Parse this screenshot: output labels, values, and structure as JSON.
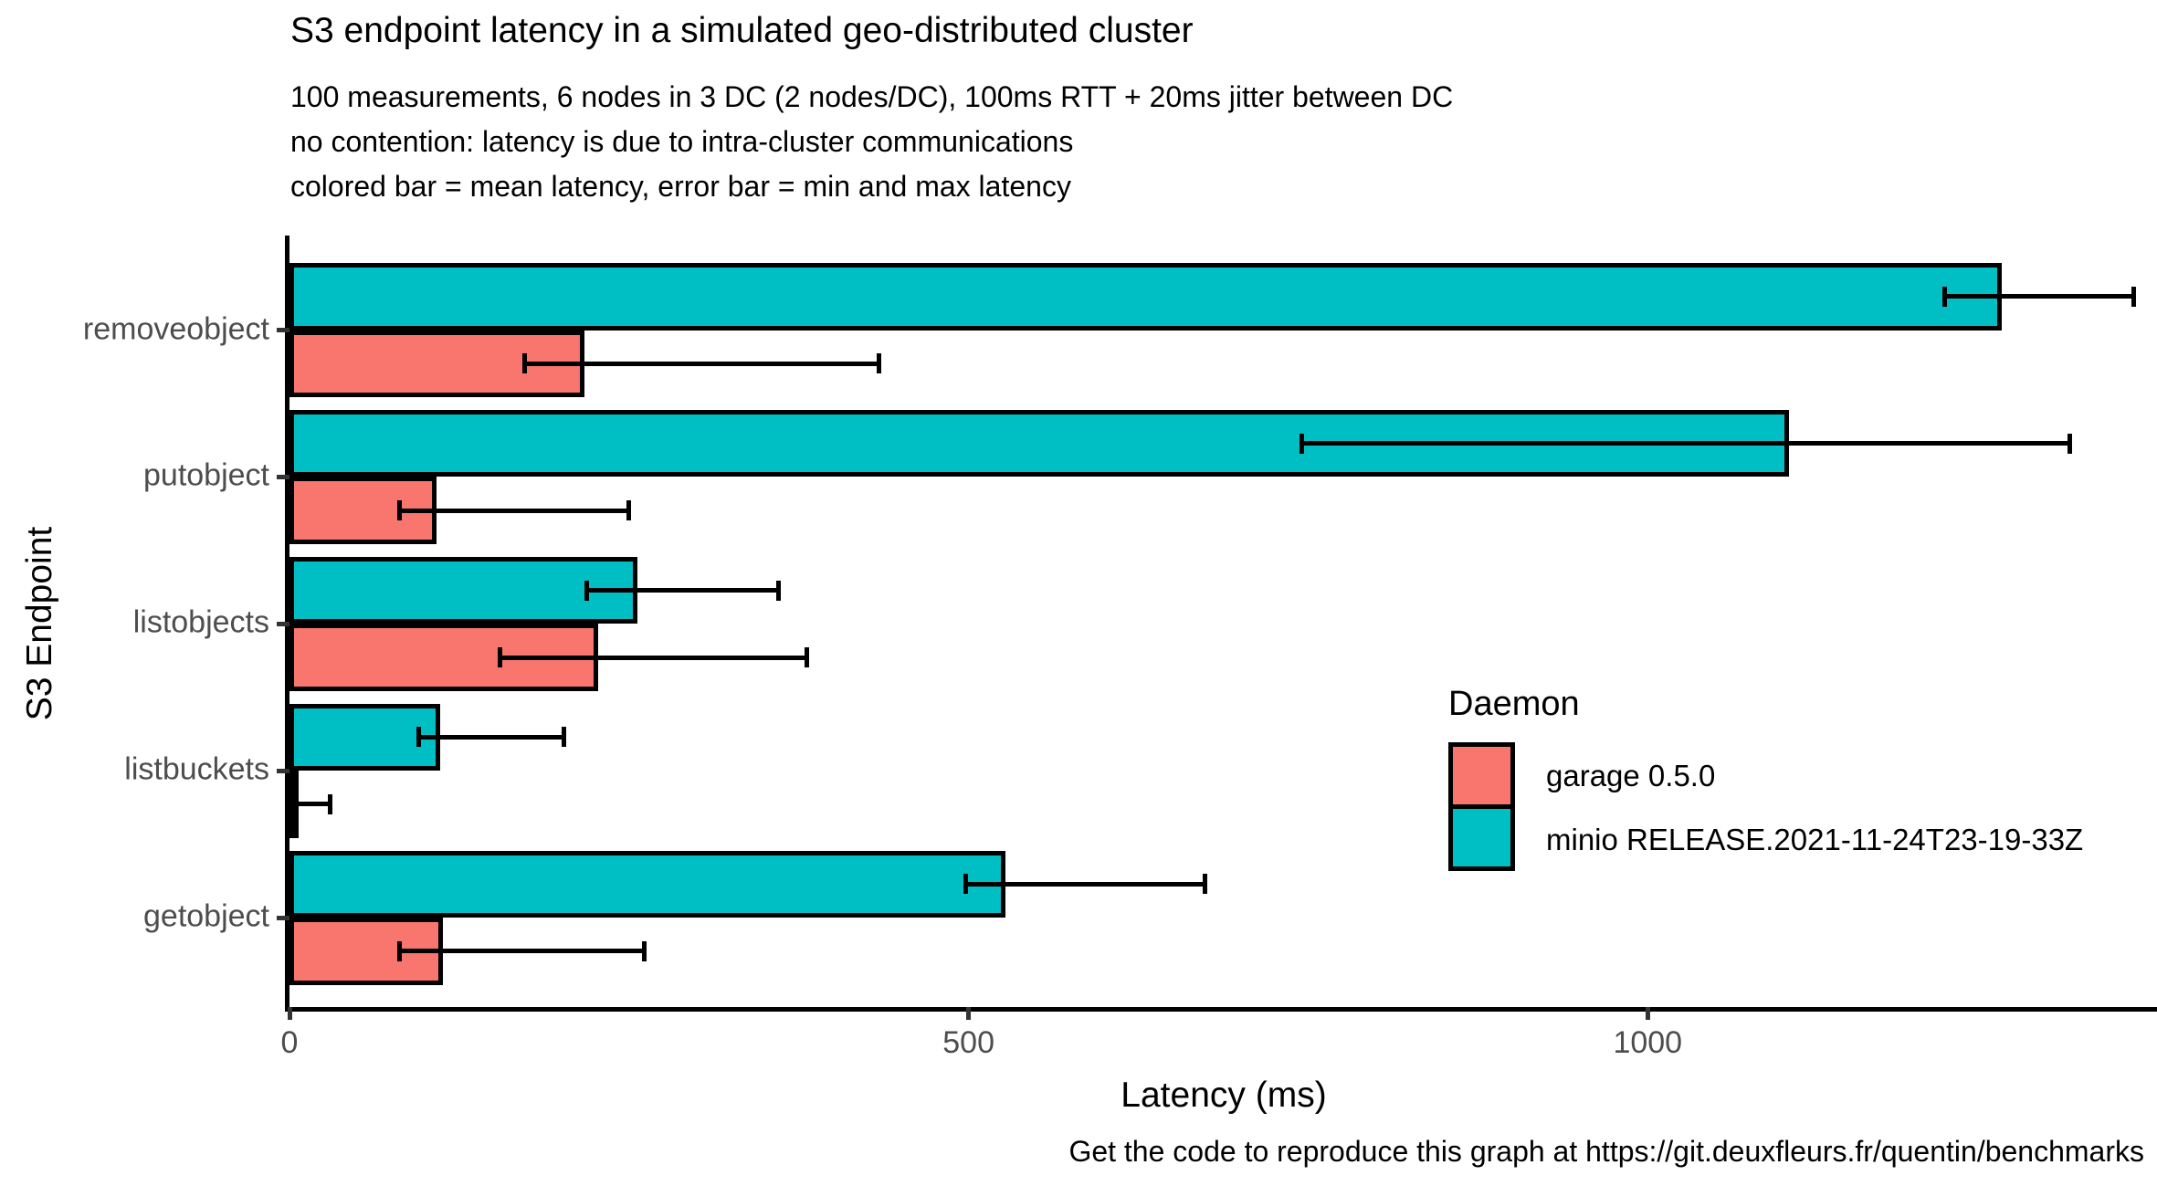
{
  "chart": {
    "title": "S3 endpoint latency in a simulated geo-distributed cluster",
    "subtitle": "100 measurements, 6 nodes in 3 DC (2 nodes/DC), 100ms RTT + 20ms jitter between DC\nno contention: latency is due to intra-cluster communications\ncolored bar = mean latency, error bar = min and max latency",
    "caption": "Get the code to reproduce this graph at https://git.deuxfleurs.fr/quentin/benchmarks"
  },
  "legend": {
    "title": "Daemon",
    "items": [
      {
        "label": "garage 0.5.0",
        "color": "#F8766D"
      },
      {
        "label": "minio RELEASE.2021-11-24T23-19-33Z",
        "color": "#00BFC4"
      }
    ]
  },
  "chart_data": {
    "type": "bar",
    "orientation": "horizontal",
    "title": "S3 endpoint latency in a simulated geo-distributed cluster",
    "xlabel": "Latency (ms)",
    "ylabel": "S3 Endpoint",
    "xlim": [
      0,
      1375
    ],
    "xticks": [
      0,
      500,
      1000
    ],
    "grid": false,
    "legend_position": "inside-right",
    "bar_meaning": "colored bar = mean latency",
    "error_bar_meaning": "error bar = min and max latency",
    "categories": [
      "removeobject",
      "putobject",
      "listobjects",
      "listbuckets",
      "getobject"
    ],
    "series": [
      {
        "name": "minio RELEASE.2021-11-24T23-19-33Z",
        "color": "#00BFC4",
        "mean": [
          1261,
          1104,
          256,
          111,
          527
        ],
        "min": [
          1219,
          745,
          219,
          95,
          498
        ],
        "max": [
          1358,
          1311,
          360,
          202,
          674
        ]
      },
      {
        "name": "garage 0.5.0",
        "color": "#F8766D",
        "mean": [
          217,
          108,
          227,
          2,
          113
        ],
        "min": [
          173,
          81,
          155,
          1,
          81
        ],
        "max": [
          434,
          250,
          381,
          30,
          261
        ]
      }
    ]
  }
}
